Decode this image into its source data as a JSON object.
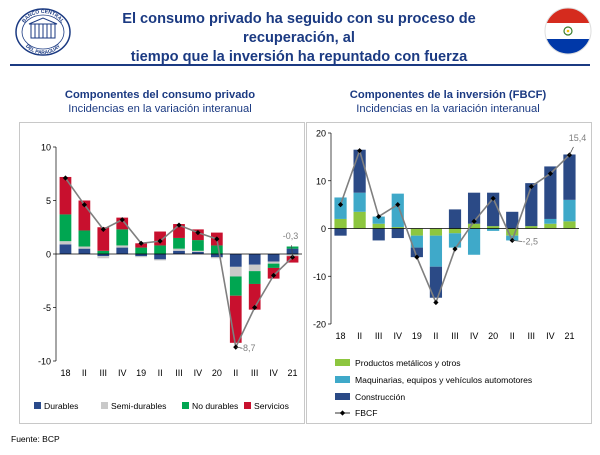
{
  "header": {
    "title_line1": "El consumo privado ha seguido con su proceso de recuperación, al",
    "title_line2": "tiempo que la inversión ha repuntado con fuerza",
    "logo_text_top": "BANCO CENTRAL",
    "logo_text_bottom": "DEL PARAGUAY"
  },
  "footer": {
    "source": "Fuente: BCP"
  },
  "colors": {
    "durables": "#2a4a8b",
    "semi_durables": "#c9c9c9",
    "no_durables": "#00a651",
    "servicios": "#c8102e",
    "productos_metalicos": "#8dc63f",
    "maquinarias": "#3fa9c9",
    "construccion": "#2b4a86",
    "fbcf_line": "#7f7f7f",
    "title": "#1b3a82"
  },
  "chart_data": [
    {
      "type": "bar",
      "stacked": true,
      "title": "Componentes del consumo privado",
      "subtitle": "Incidencias en la variación interanual",
      "categories": [
        "18",
        "II",
        "III",
        "IV",
        "19",
        "II",
        "III",
        "IV",
        "20",
        "II",
        "III",
        "IV",
        "21"
      ],
      "ylim": [
        -10,
        10
      ],
      "yticks": [
        -10,
        -5,
        0,
        5,
        10
      ],
      "ytick_labels": [
        "-10",
        "-5",
        "0",
        "5",
        "10"
      ],
      "grid": false,
      "legend_position": "bottom",
      "series": [
        {
          "name": "Durables",
          "key": "durables",
          "values": [
            0.9,
            0.5,
            -0.2,
            0.6,
            -0.2,
            -0.5,
            0.3,
            0.2,
            -0.3,
            -1.2,
            -1.0,
            -0.7,
            0.5
          ]
        },
        {
          "name": "Semi-durables",
          "key": "semi_durables",
          "values": [
            0.3,
            0.2,
            -0.2,
            0.2,
            -0.1,
            -0.1,
            0.2,
            0.1,
            -0.1,
            -0.9,
            -0.6,
            -0.2,
            -0.2
          ]
        },
        {
          "name": "No durables",
          "key": "no_durables",
          "values": [
            2.5,
            1.5,
            0.3,
            1.5,
            0.6,
            0.8,
            1.0,
            1.0,
            0.8,
            -1.8,
            -1.2,
            -0.4,
            0.2
          ]
        },
        {
          "name": "Servicios",
          "key": "servicios",
          "values": [
            3.5,
            2.8,
            2.2,
            1.1,
            0.4,
            1.3,
            1.3,
            1.0,
            1.2,
            -4.4,
            -2.4,
            -1.0,
            -0.6
          ]
        }
      ],
      "total_line": [
        7.1,
        4.6,
        2.3,
        3.2,
        1.0,
        1.2,
        2.7,
        2.0,
        1.4,
        -8.7,
        -5.0,
        -2.0,
        -0.3
      ],
      "labels": [
        {
          "index": 9,
          "text": "-8,7"
        },
        {
          "index": 12,
          "text": "-0,3"
        }
      ]
    },
    {
      "type": "bar",
      "stacked": true,
      "title": "Componentes de la inversión (FBCF)",
      "subtitle": "Incidencias en la variación interanual",
      "categories": [
        "18",
        "II",
        "III",
        "IV",
        "19",
        "II",
        "III",
        "IV",
        "20",
        "II",
        "III",
        "IV",
        "21"
      ],
      "ylim": [
        -20,
        20
      ],
      "yticks": [
        -20,
        -10,
        0,
        10,
        20
      ],
      "ytick_labels": [
        "-20",
        "-10",
        "0",
        "10",
        "20"
      ],
      "grid": false,
      "legend_position": "bottom",
      "series": [
        {
          "name": "Productos metálicos y otros",
          "key": "productos_metalicos",
          "values": [
            2.0,
            3.5,
            1.0,
            0.3,
            -1.5,
            -1.5,
            -1.0,
            1.0,
            0.5,
            -1.5,
            0.5,
            1.0,
            1.5
          ]
        },
        {
          "name": "Maquinarias, equipos y vehículos automotores",
          "key": "maquinarias",
          "values": [
            4.5,
            4.0,
            1.5,
            7.0,
            -2.5,
            -6.5,
            -3.0,
            -5.5,
            -0.5,
            -1.0,
            0.0,
            1.0,
            4.5
          ]
        },
        {
          "name": "Construcción",
          "key": "construccion",
          "values": [
            -1.5,
            9.0,
            -2.5,
            -2.0,
            -2.0,
            -6.5,
            4.0,
            6.5,
            7.0,
            3.5,
            9.0,
            11.0,
            9.5
          ]
        }
      ],
      "total_line": {
        "name": "FBCF",
        "values": [
          5.0,
          16.3,
          2.5,
          5.0,
          -6.0,
          -15.5,
          -4.3,
          1.5,
          6.3,
          -2.5,
          8.8,
          11.5,
          15.4
        ]
      },
      "labels": [
        {
          "index": 9,
          "text": "-2,5"
        },
        {
          "index": 12,
          "text": "15,4"
        }
      ]
    }
  ]
}
